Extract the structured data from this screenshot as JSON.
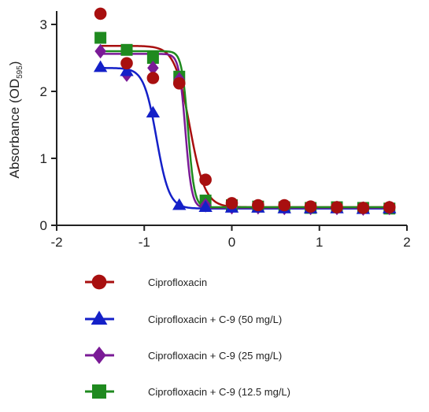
{
  "chart_data": {
    "type": "scatter",
    "ylabel": "Absorbance",
    "ylabel_unit_main": "OD",
    "ylabel_unit_sub": "595",
    "xlim": [
      -2,
      2
    ],
    "ylim": [
      0,
      3.2
    ],
    "x_ticks": [
      -2,
      -1,
      0,
      1,
      2
    ],
    "y_ticks": [
      0,
      1,
      2,
      3
    ],
    "grid": false,
    "legend_position": "bottom",
    "colors": {
      "red": "#a80f0f",
      "blue": "#1420c8",
      "purple": "#7a1a96",
      "green": "#1f8a1f"
    },
    "series": [
      {
        "name": "Ciprofloxacin",
        "marker": "circle",
        "color": "#a80f0f",
        "points": [
          {
            "x": -1.5,
            "y": 3.16
          },
          {
            "x": -1.2,
            "y": 2.42
          },
          {
            "x": -0.9,
            "y": 2.2
          },
          {
            "x": -0.6,
            "y": 2.12
          },
          {
            "x": -0.3,
            "y": 0.68
          },
          {
            "x": 0.0,
            "y": 0.33
          },
          {
            "x": 0.3,
            "y": 0.3
          },
          {
            "x": 0.6,
            "y": 0.3
          },
          {
            "x": 0.9,
            "y": 0.28
          },
          {
            "x": 1.2,
            "y": 0.27
          },
          {
            "x": 1.5,
            "y": 0.26
          },
          {
            "x": 1.8,
            "y": 0.27
          }
        ],
        "fit": {
          "top": 2.68,
          "bottom": 0.27,
          "logEC50": -0.48,
          "hill": 5
        }
      },
      {
        "name": "Ciprofloxacin + C-9 (50 mg/L)",
        "marker": "triangle",
        "color": "#1420c8",
        "points": [
          {
            "x": -1.5,
            "y": 2.36
          },
          {
            "x": -1.2,
            "y": 2.3
          },
          {
            "x": -0.9,
            "y": 1.68
          },
          {
            "x": -0.6,
            "y": 0.3
          },
          {
            "x": -0.3,
            "y": 0.27
          },
          {
            "x": 0.0,
            "y": 0.26
          },
          {
            "x": 0.3,
            "y": 0.26
          },
          {
            "x": 0.6,
            "y": 0.25
          },
          {
            "x": 0.9,
            "y": 0.25
          },
          {
            "x": 1.2,
            "y": 0.25
          },
          {
            "x": 1.5,
            "y": 0.24
          },
          {
            "x": 1.8,
            "y": 0.25
          }
        ],
        "fit": {
          "top": 2.35,
          "bottom": 0.25,
          "logEC50": -0.86,
          "hill": 6
        }
      },
      {
        "name": "Ciprofloxacin + C-9 (25 mg/L)",
        "marker": "diamond",
        "color": "#7a1a96",
        "points": [
          {
            "x": -1.5,
            "y": 2.6
          },
          {
            "x": -1.2,
            "y": 2.25
          },
          {
            "x": -0.9,
            "y": 2.35
          },
          {
            "x": -0.6,
            "y": 2.18
          },
          {
            "x": -0.3,
            "y": 0.3
          },
          {
            "x": 0.0,
            "y": 0.27
          },
          {
            "x": 0.3,
            "y": 0.27
          },
          {
            "x": 0.6,
            "y": 0.26
          },
          {
            "x": 0.9,
            "y": 0.26
          },
          {
            "x": 1.2,
            "y": 0.26
          },
          {
            "x": 1.5,
            "y": 0.25
          },
          {
            "x": 1.8,
            "y": 0.26
          }
        ],
        "fit": {
          "top": 2.56,
          "bottom": 0.26,
          "logEC50": -0.53,
          "hill": 12
        }
      },
      {
        "name": "Ciprofloxacin + C-9 (12.5 mg/L)",
        "marker": "square",
        "color": "#1f8a1f",
        "points": [
          {
            "x": -1.5,
            "y": 2.8
          },
          {
            "x": -1.2,
            "y": 2.62
          },
          {
            "x": -0.9,
            "y": 2.5
          },
          {
            "x": -0.6,
            "y": 2.22
          },
          {
            "x": -0.3,
            "y": 0.37
          },
          {
            "x": 0.0,
            "y": 0.3
          },
          {
            "x": 0.3,
            "y": 0.28
          },
          {
            "x": 0.6,
            "y": 0.27
          },
          {
            "x": 0.9,
            "y": 0.26
          },
          {
            "x": 1.2,
            "y": 0.27
          },
          {
            "x": 1.5,
            "y": 0.26
          },
          {
            "x": 1.8,
            "y": 0.25
          }
        ],
        "fit": {
          "top": 2.6,
          "bottom": 0.27,
          "logEC50": -0.5,
          "hill": 12
        }
      }
    ]
  }
}
